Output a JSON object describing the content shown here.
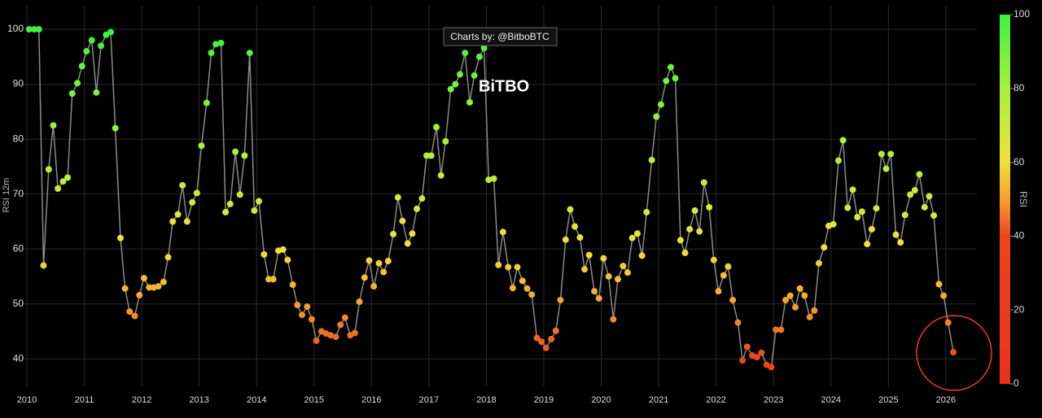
{
  "chart_data": {
    "type": "scatter",
    "y_label": "RSI 12m",
    "annotation": "Charts by: @BitboBTC",
    "logo": "BiTBO",
    "colorbar_title": "RSI",
    "clim": [
      0,
      100
    ],
    "cticks": [
      0,
      20,
      40,
      60,
      80,
      100
    ],
    "colorscale": [
      [
        0,
        "#e8321e"
      ],
      [
        40,
        "#e8461e"
      ],
      [
        50,
        "#f5a030"
      ],
      [
        60,
        "#f0e040"
      ],
      [
        80,
        "#a8f040"
      ],
      [
        100,
        "#40f040"
      ]
    ],
    "line_color": "#8a8a8a",
    "grid": true,
    "xlim": [
      2009.75,
      2026.54
    ],
    "ylim": [
      35,
      104.3
    ],
    "xticks": [
      2010,
      2011,
      2012,
      2013,
      2014,
      2015,
      2016,
      2017,
      2018,
      2019,
      2020,
      2021,
      2022,
      2023,
      2024,
      2025,
      2026
    ],
    "yticks": [
      40,
      50,
      60,
      70,
      80,
      90,
      100
    ],
    "x": [
      2010.04,
      2010.13,
      2010.21,
      2010.29,
      2010.38,
      2010.46,
      2010.54,
      2010.63,
      2010.71,
      2010.79,
      2010.88,
      2010.96,
      2011.04,
      2011.13,
      2011.21,
      2011.29,
      2011.38,
      2011.46,
      2011.54,
      2011.63,
      2011.71,
      2011.79,
      2011.88,
      2011.96,
      2012.04,
      2012.13,
      2012.21,
      2012.29,
      2012.38,
      2012.46,
      2012.54,
      2012.63,
      2012.71,
      2012.79,
      2012.88,
      2012.96,
      2013.04,
      2013.13,
      2013.21,
      2013.29,
      2013.38,
      2013.46,
      2013.54,
      2013.63,
      2013.71,
      2013.79,
      2013.88,
      2013.96,
      2014.04,
      2014.13,
      2014.21,
      2014.29,
      2014.38,
      2014.46,
      2014.54,
      2014.63,
      2014.71,
      2014.79,
      2014.88,
      2014.96,
      2015.04,
      2015.13,
      2015.21,
      2015.29,
      2015.38,
      2015.46,
      2015.54,
      2015.63,
      2015.71,
      2015.79,
      2015.88,
      2015.96,
      2016.04,
      2016.13,
      2016.21,
      2016.29,
      2016.38,
      2016.46,
      2016.54,
      2016.63,
      2016.71,
      2016.79,
      2016.88,
      2016.96,
      2017.04,
      2017.13,
      2017.21,
      2017.29,
      2017.38,
      2017.46,
      2017.54,
      2017.63,
      2017.71,
      2017.79,
      2017.88,
      2017.96,
      2018.04,
      2018.13,
      2018.21,
      2018.29,
      2018.38,
      2018.46,
      2018.54,
      2018.63,
      2018.71,
      2018.79,
      2018.88,
      2018.96,
      2019.04,
      2019.13,
      2019.21,
      2019.29,
      2019.38,
      2019.46,
      2019.54,
      2019.63,
      2019.71,
      2019.79,
      2019.88,
      2019.96,
      2020.04,
      2020.13,
      2020.21,
      2020.29,
      2020.38,
      2020.46,
      2020.54,
      2020.63,
      2020.71,
      2020.79,
      2020.88,
      2020.96,
      2021.04,
      2021.13,
      2021.21,
      2021.29,
      2021.38,
      2021.46,
      2021.54,
      2021.63,
      2021.71,
      2021.79,
      2021.88,
      2021.96,
      2022.04,
      2022.13,
      2022.21,
      2022.29,
      2022.38,
      2022.46,
      2022.54,
      2022.63,
      2022.71,
      2022.79,
      2022.88,
      2022.96,
      2023.04,
      2023.13,
      2023.21,
      2023.29,
      2023.38,
      2023.46,
      2023.54,
      2023.63,
      2023.71,
      2023.79,
      2023.88,
      2023.96,
      2024.04,
      2024.13,
      2024.21,
      2024.29,
      2024.38,
      2024.46,
      2024.54,
      2024.63,
      2024.71,
      2024.79,
      2024.88,
      2024.96,
      2025.04,
      2025.13,
      2025.21,
      2025.29,
      2025.38,
      2025.46,
      2025.54,
      2025.63,
      2025.71,
      2025.79,
      2025.88,
      2025.96,
      2026.04,
      2026.13
    ],
    "values": [
      100,
      100,
      100,
      57,
      74.5,
      82.5,
      71,
      72.3,
      73,
      88.3,
      90.2,
      93.3,
      96,
      98,
      88.5,
      97,
      99,
      99.5,
      82,
      62,
      52.8,
      48.6,
      47.8,
      51.6,
      54.7,
      53,
      53,
      53.2,
      54,
      58.5,
      65,
      66.3,
      71.6,
      65,
      68.5,
      70.2,
      78.8,
      86.6,
      95.7,
      97.3,
      97.5,
      66.7,
      68.2,
      77.7,
      69.9,
      77,
      95.7,
      67,
      68.7,
      59,
      54.5,
      54.5,
      59.7,
      59.9,
      58,
      53.5,
      49.8,
      48,
      49.5,
      47.2,
      43.3,
      45,
      44.6,
      44.3,
      44,
      46.2,
      47.5,
      44.3,
      44.7,
      50.4,
      54.8,
      57.9,
      53.2,
      57.4,
      55.8,
      57.8,
      62.7,
      69.4,
      65.1,
      61,
      62.8,
      67.3,
      69.2,
      77,
      77,
      82.2,
      73.4,
      79.6,
      89.1,
      90,
      91.8,
      95.7,
      86.7,
      91.6,
      95,
      96.6,
      72.6,
      72.8,
      57.1,
      63.1,
      56.7,
      52.9,
      56.7,
      54.2,
      52.8,
      51.7,
      43.8,
      43.1,
      42,
      43.6,
      45.1,
      50.7,
      61.7,
      67.2,
      64.1,
      62.1,
      56.3,
      58.9,
      52.3,
      51,
      58.3,
      55,
      47.2,
      54.5,
      56.9,
      55.7,
      62,
      62.8,
      58.8,
      66.7,
      76.2,
      84.1,
      86.3,
      90.6,
      93.1,
      91.1,
      61.6,
      59.3,
      63.6,
      67,
      63.2,
      72.1,
      67.6,
      58,
      52.3,
      55.2,
      56.8,
      50.7,
      46.6,
      39.7,
      42.2,
      40.6,
      40.3,
      41.1,
      38.9,
      38.5,
      45.3,
      45.3,
      50.7,
      51.5,
      49.4,
      52.8,
      51.5,
      47.6,
      48.8,
      57.4,
      60.3,
      64.2,
      64.5,
      76.1,
      79.8,
      67.5,
      70.8,
      65.8,
      66.8,
      60.9,
      63.6,
      67.4,
      77.3,
      74.6,
      77.3,
      62.6,
      61.2,
      66.2,
      69.9,
      70.7,
      73.6,
      67.6,
      69.6,
      66.1,
      53.6,
      51.5,
      46.6,
      41.2
    ]
  }
}
